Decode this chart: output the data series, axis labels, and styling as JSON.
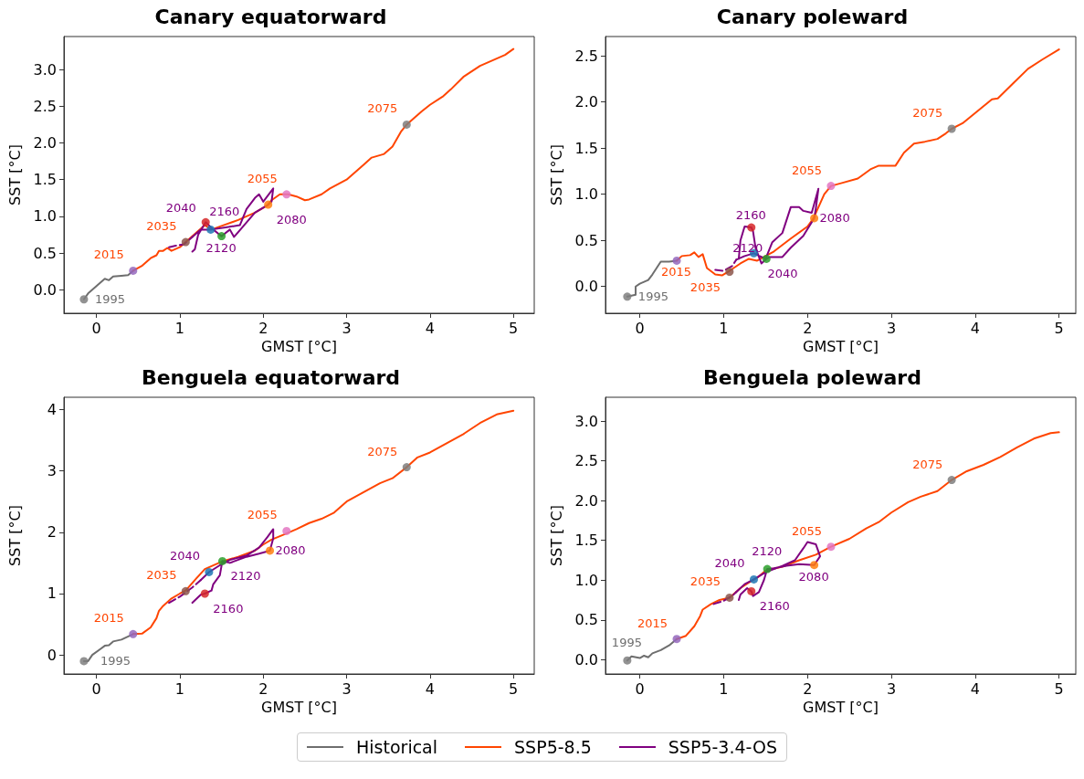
{
  "chart_data": [
    {
      "type": "line",
      "title": "Canary equatorward",
      "xlabel": "GMST [°C]",
      "ylabel": "SST [°C]",
      "xlim": [
        -0.39,
        5.25
      ],
      "xticks": [
        0,
        1,
        2,
        3,
        4,
        5
      ],
      "ylim": [
        -0.32,
        3.45
      ],
      "yticks": [
        {
          "value": 0,
          "label": "0.0"
        },
        0.5,
        {
          "value": 1,
          "label": "1.0"
        },
        1.5,
        {
          "value": 2,
          "label": "2.0"
        },
        2.5,
        {
          "value": 3,
          "label": "3.0"
        }
      ],
      "legend": "bottom",
      "grid": false,
      "series": [
        {
          "name": "Historical",
          "color": "#6e6e6e",
          "x": [
            -0.15,
            -0.1,
            0.0,
            0.1,
            0.15,
            0.2,
            0.3,
            0.38,
            0.44
          ],
          "values": [
            -0.13,
            -0.05,
            0.05,
            0.15,
            0.13,
            0.18,
            0.19,
            0.2,
            0.26
          ]
        },
        {
          "name": "SSP5-8.5",
          "color": "#ff4500",
          "x": [
            0.44,
            0.55,
            0.65,
            0.72,
            0.75,
            0.8,
            0.85,
            0.9,
            1.0,
            1.07,
            1.2,
            1.3,
            1.38,
            1.5,
            1.7,
            1.9,
            2.05,
            2.1,
            2.2,
            2.3,
            2.4,
            2.5,
            2.55,
            2.7,
            2.8,
            3.0,
            3.1,
            3.2,
            3.3,
            3.45,
            3.55,
            3.65,
            3.72,
            3.8,
            3.9,
            4.0,
            4.15,
            4.25,
            4.4,
            4.6,
            4.8,
            4.9,
            5.0
          ],
          "values": [
            0.26,
            0.33,
            0.43,
            0.47,
            0.53,
            0.53,
            0.57,
            0.53,
            0.58,
            0.65,
            0.78,
            0.88,
            0.82,
            0.87,
            0.95,
            1.05,
            1.15,
            1.22,
            1.3,
            1.3,
            1.27,
            1.22,
            1.23,
            1.3,
            1.38,
            1.5,
            1.6,
            1.7,
            1.8,
            1.85,
            1.95,
            2.15,
            2.25,
            2.33,
            2.43,
            2.52,
            2.63,
            2.73,
            2.9,
            3.05,
            3.15,
            3.2,
            3.28
          ]
        },
        {
          "name": "SSP5-3.4-OS",
          "color": "#800080",
          "x": [
            1.15,
            1.25,
            1.37,
            1.55,
            1.72,
            1.8,
            1.9,
            1.95,
            2.0,
            2.12,
            2.1,
            2.06,
            1.9,
            1.75,
            1.65,
            1.6,
            1.5,
            1.4,
            1.31,
            1.22,
            1.18,
            1.15
          ],
          "values": [
            0.72,
            0.82,
            0.82,
            0.85,
            0.88,
            1.1,
            1.25,
            1.3,
            1.2,
            1.38,
            1.2,
            1.16,
            1.05,
            0.85,
            0.72,
            0.82,
            0.73,
            0.82,
            0.92,
            0.75,
            0.55,
            0.52
          ]
        },
        {
          "color": "#800080",
          "line_style": "dashed",
          "x": [
            0.87,
            0.95,
            1.05,
            1.15
          ],
          "values": [
            0.58,
            0.6,
            0.62,
            0.72
          ]
        },
        {
          "type": "scatter",
          "x": [
            -0.15
          ],
          "values": [
            -0.13
          ],
          "colors": [
            "#7f7f7f"
          ]
        },
        {
          "type": "scatter",
          "x": [
            0.44,
            1.07,
            2.28,
            3.72
          ],
          "values": [
            0.26,
            0.65,
            1.3,
            2.25
          ],
          "colors": [
            "#9467bd",
            "#8c564b",
            "#e377c2",
            "#7f7f7f"
          ]
        },
        {
          "type": "scatter",
          "x": [
            1.37,
            2.06,
            1.5,
            1.31
          ],
          "values": [
            0.82,
            1.16,
            0.73,
            0.92
          ],
          "colors": [
            "#1f77b4",
            "#ff7f0e",
            "#2ca02c",
            "#d62728"
          ]
        }
      ],
      "annotations": [
        {
          "text": "1995",
          "x": -0.15,
          "y": -0.13
        },
        {
          "text": "2015",
          "x": 0.44,
          "y": 0.26
        },
        {
          "text": "2035",
          "x": 1.07,
          "y": 0.65
        },
        {
          "text": "2055",
          "x": 2.28,
          "y": 1.3
        },
        {
          "text": "2075",
          "x": 3.72,
          "y": 2.25
        },
        {
          "text": "2040",
          "x": 1.37,
          "y": 0.82
        },
        {
          "text": "2080",
          "x": 2.06,
          "y": 1.16
        },
        {
          "text": "2120",
          "x": 1.5,
          "y": 0.73
        },
        {
          "text": "2160",
          "x": 1.31,
          "y": 0.92
        }
      ]
    },
    {
      "type": "line",
      "title": "Canary poleward",
      "xlabel": "GMST [°C]",
      "ylabel": "SST [°C]",
      "xlim": [
        -0.41,
        5.2
      ],
      "xticks": [
        0,
        1,
        2,
        3,
        4,
        5
      ],
      "ylim": [
        -0.29,
        2.71
      ],
      "yticks": [
        {
          "value": 0,
          "label": "0.0"
        },
        0.5,
        {
          "value": 1,
          "label": "1.0"
        },
        1.5,
        {
          "value": 2,
          "label": "2.0"
        },
        2.5
      ],
      "legend": "bottom",
      "grid": false,
      "series": [
        {
          "name": "Historical",
          "color": "#6e6e6e",
          "x": [
            -0.15,
            -0.05,
            -0.05,
            0.0,
            0.1,
            0.15,
            0.2,
            0.25,
            0.35,
            0.44
          ],
          "values": [
            -0.11,
            -0.09,
            0.0,
            0.03,
            0.07,
            0.13,
            0.2,
            0.27,
            0.27,
            0.28
          ]
        },
        {
          "name": "SSP5-8.5",
          "color": "#ff4500",
          "x": [
            0.44,
            0.5,
            0.6,
            0.65,
            0.7,
            0.75,
            0.8,
            0.9,
            0.98,
            1.07,
            1.2,
            1.3,
            1.4,
            1.5,
            1.6,
            1.8,
            2.0,
            2.07,
            2.15,
            2.2,
            2.28,
            2.4,
            2.6,
            2.75,
            2.85,
            3.05,
            3.15,
            3.27,
            3.4,
            3.55,
            3.65,
            3.72,
            3.85,
            4.0,
            4.2,
            4.27,
            4.45,
            4.63,
            4.8,
            5.0
          ],
          "values": [
            0.28,
            0.33,
            0.34,
            0.37,
            0.32,
            0.35,
            0.2,
            0.13,
            0.12,
            0.17,
            0.25,
            0.3,
            0.28,
            0.33,
            0.38,
            0.52,
            0.65,
            0.74,
            0.9,
            1.0,
            1.09,
            1.12,
            1.17,
            1.27,
            1.31,
            1.31,
            1.45,
            1.55,
            1.57,
            1.6,
            1.66,
            1.71,
            1.77,
            1.88,
            2.03,
            2.04,
            2.2,
            2.36,
            2.46,
            2.57
          ]
        },
        {
          "name": "SSP5-3.4-OS",
          "color": "#800080",
          "x": [
            1.15,
            1.25,
            1.36,
            1.5,
            1.58,
            1.7,
            1.8,
            1.9,
            1.95,
            2.05,
            2.13,
            2.1,
            2.08,
            1.95,
            1.8,
            1.7,
            1.55,
            1.51,
            1.45,
            1.38,
            1.35,
            1.33,
            1.25,
            1.2,
            1.18
          ],
          "values": [
            0.29,
            0.33,
            0.36,
            0.3,
            0.48,
            0.58,
            0.86,
            0.86,
            0.82,
            0.8,
            1.06,
            0.85,
            0.74,
            0.55,
            0.42,
            0.32,
            0.32,
            0.3,
            0.25,
            0.42,
            0.6,
            0.64,
            0.65,
            0.5,
            0.3
          ]
        },
        {
          "color": "#800080",
          "line_style": "dashed",
          "x": [
            0.9,
            1.0,
            1.1,
            1.15
          ],
          "values": [
            0.18,
            0.17,
            0.22,
            0.29
          ]
        },
        {
          "type": "scatter",
          "x": [
            -0.15
          ],
          "values": [
            -0.11
          ],
          "colors": [
            "#7f7f7f"
          ]
        },
        {
          "type": "scatter",
          "x": [
            0.44,
            1.07,
            2.28,
            3.72
          ],
          "values": [
            0.28,
            0.16,
            1.09,
            1.71
          ],
          "colors": [
            "#9467bd",
            "#8c564b",
            "#e377c2",
            "#7f7f7f"
          ]
        },
        {
          "type": "scatter",
          "x": [
            1.36,
            2.08,
            1.51,
            1.33
          ],
          "values": [
            0.36,
            0.74,
            0.3,
            0.64
          ],
          "colors": [
            "#1f77b4",
            "#ff7f0e",
            "#2ca02c",
            "#d62728"
          ]
        }
      ],
      "annotations": [
        {
          "text": "1995",
          "x": -0.15,
          "y": -0.11
        },
        {
          "text": "2015",
          "x": 0.44,
          "y": 0.28
        },
        {
          "text": "2035",
          "x": 1.07,
          "y": 0.16
        },
        {
          "text": "2055",
          "x": 2.28,
          "y": 1.09
        },
        {
          "text": "2075",
          "x": 3.72,
          "y": 1.71
        },
        {
          "text": "2040",
          "x": 1.36,
          "y": 0.36
        },
        {
          "text": "2080",
          "x": 2.08,
          "y": 0.74
        },
        {
          "text": "2120",
          "x": 1.51,
          "y": 0.3
        },
        {
          "text": "2160",
          "x": 1.33,
          "y": 0.64
        }
      ]
    },
    {
      "type": "line",
      "title": "Benguela equatorward",
      "xlabel": "GMST [°C]",
      "ylabel": "SST [°C]",
      "xlim": [
        -0.39,
        5.25
      ],
      "xticks": [
        0,
        1,
        2,
        3,
        4,
        5
      ],
      "ylim": [
        -0.31,
        4.2
      ],
      "yticks": [
        0,
        1,
        2,
        3,
        4
      ],
      "legend": "bottom",
      "grid": false,
      "series": [
        {
          "name": "Historical",
          "color": "#6e6e6e",
          "x": [
            -0.15,
            -0.1,
            -0.05,
            0.05,
            0.1,
            0.15,
            0.2,
            0.3,
            0.44
          ],
          "values": [
            -0.1,
            -0.1,
            0.0,
            0.1,
            0.15,
            0.16,
            0.22,
            0.25,
            0.34
          ]
        },
        {
          "name": "SSP5-8.5",
          "color": "#ff4500",
          "x": [
            0.44,
            0.55,
            0.65,
            0.72,
            0.75,
            0.8,
            0.9,
            1.0,
            1.07,
            1.2,
            1.3,
            1.5,
            1.7,
            1.9,
            2.0,
            2.1,
            2.28,
            2.4,
            2.55,
            2.7,
            2.85,
            3.0,
            3.2,
            3.4,
            3.55,
            3.72,
            3.85,
            4.0,
            4.2,
            4.4,
            4.6,
            4.8,
            5.0
          ],
          "values": [
            0.34,
            0.35,
            0.45,
            0.6,
            0.72,
            0.8,
            0.92,
            1.0,
            1.05,
            1.25,
            1.4,
            1.52,
            1.6,
            1.7,
            1.8,
            1.88,
            1.98,
            2.05,
            2.15,
            2.22,
            2.32,
            2.5,
            2.65,
            2.8,
            2.88,
            3.06,
            3.22,
            3.3,
            3.45,
            3.6,
            3.78,
            3.92,
            3.98
          ]
        },
        {
          "name": "SSP5-3.4-OS",
          "color": "#800080",
          "x": [
            1.25,
            1.35,
            1.5,
            1.6,
            1.8,
            1.95,
            2.05,
            2.12,
            2.12,
            2.08,
            1.95,
            1.8,
            1.6,
            1.51,
            1.48,
            1.4,
            1.38,
            1.3,
            1.25,
            1.15
          ],
          "values": [
            1.22,
            1.35,
            1.48,
            1.55,
            1.62,
            1.75,
            1.92,
            2.05,
            1.9,
            1.7,
            1.65,
            1.6,
            1.5,
            1.53,
            1.3,
            1.15,
            1.05,
            1.0,
            0.98,
            0.85
          ]
        },
        {
          "color": "#800080",
          "line_style": "dashed",
          "x": [
            0.87,
            1.0,
            1.15,
            1.25
          ],
          "values": [
            0.85,
            0.95,
            1.1,
            1.22
          ]
        },
        {
          "type": "scatter",
          "x": [
            -0.15
          ],
          "values": [
            -0.1
          ],
          "colors": [
            "#7f7f7f"
          ]
        },
        {
          "type": "scatter",
          "x": [
            0.44,
            1.07,
            2.28,
            3.72
          ],
          "values": [
            0.34,
            1.04,
            2.02,
            3.06
          ],
          "colors": [
            "#9467bd",
            "#8c564b",
            "#e377c2",
            "#7f7f7f"
          ]
        },
        {
          "type": "scatter",
          "x": [
            1.35,
            2.08,
            1.51,
            1.3
          ],
          "values": [
            1.35,
            1.7,
            1.53,
            1.0
          ],
          "colors": [
            "#1f77b4",
            "#ff7f0e",
            "#2ca02c",
            "#d62728"
          ]
        }
      ],
      "annotations": [
        {
          "text": "1995",
          "x": -0.15,
          "y": -0.1
        },
        {
          "text": "2015",
          "x": 0.44,
          "y": 0.34
        },
        {
          "text": "2035",
          "x": 1.07,
          "y": 1.04
        },
        {
          "text": "2055",
          "x": 2.28,
          "y": 2.02
        },
        {
          "text": "2075",
          "x": 3.72,
          "y": 3.06
        },
        {
          "text": "2040",
          "x": 1.35,
          "y": 1.35
        },
        {
          "text": "2080",
          "x": 2.08,
          "y": 1.7
        },
        {
          "text": "2120",
          "x": 1.51,
          "y": 1.53
        },
        {
          "text": "2160",
          "x": 1.3,
          "y": 1.0
        }
      ]
    },
    {
      "type": "line",
      "title": "Benguela poleward",
      "xlabel": "GMST [°C]",
      "ylabel": "SST [°C]",
      "xlim": [
        -0.41,
        5.2
      ],
      "xticks": [
        0,
        1,
        2,
        3,
        4,
        5
      ],
      "ylim": [
        -0.18,
        3.3
      ],
      "yticks": [
        {
          "value": 0,
          "label": "0.0"
        },
        0.5,
        {
          "value": 1,
          "label": "1.0"
        },
        1.5,
        {
          "value": 2,
          "label": "2.0"
        },
        2.5,
        {
          "value": 3,
          "label": "3.0"
        }
      ],
      "legend": "bottom",
      "grid": false,
      "series": [
        {
          "name": "Historical",
          "color": "#6e6e6e",
          "x": [
            -0.15,
            -0.1,
            0.0,
            0.05,
            0.1,
            0.15,
            0.25,
            0.35,
            0.44
          ],
          "values": [
            -0.01,
            0.04,
            0.02,
            0.05,
            0.03,
            0.08,
            0.12,
            0.18,
            0.26
          ]
        },
        {
          "name": "SSP5-8.5",
          "color": "#ff4500",
          "x": [
            0.44,
            0.55,
            0.65,
            0.72,
            0.75,
            0.85,
            0.95,
            1.07,
            1.2,
            1.3,
            1.4,
            1.5,
            1.7,
            1.9,
            2.1,
            2.28,
            2.5,
            2.7,
            2.85,
            3.0,
            3.2,
            3.35,
            3.55,
            3.72,
            3.9,
            4.1,
            4.3,
            4.5,
            4.7,
            4.9,
            5.0
          ],
          "values": [
            0.26,
            0.3,
            0.42,
            0.55,
            0.63,
            0.7,
            0.75,
            0.78,
            0.9,
            0.97,
            1.03,
            1.12,
            1.17,
            1.25,
            1.32,
            1.42,
            1.52,
            1.65,
            1.73,
            1.85,
            1.98,
            2.05,
            2.12,
            2.26,
            2.37,
            2.45,
            2.55,
            2.67,
            2.78,
            2.85,
            2.86
          ]
        },
        {
          "name": "SSP5-3.4-OS",
          "color": "#800080",
          "x": [
            1.15,
            1.25,
            1.36,
            1.5,
            1.7,
            1.85,
            1.95,
            2.0,
            2.1,
            2.15,
            2.08,
            1.9,
            1.75,
            1.6,
            1.52,
            1.48,
            1.42,
            1.35,
            1.33,
            1.28,
            1.2,
            1.18
          ],
          "values": [
            0.85,
            0.95,
            1.01,
            1.1,
            1.18,
            1.25,
            1.4,
            1.48,
            1.45,
            1.3,
            1.19,
            1.2,
            1.18,
            1.15,
            1.14,
            1.0,
            0.85,
            0.8,
            0.86,
            0.9,
            0.82,
            0.75
          ]
        },
        {
          "color": "#800080",
          "line_style": "dashed",
          "x": [
            0.88,
            1.0,
            1.1,
            1.15
          ],
          "values": [
            0.7,
            0.74,
            0.8,
            0.85
          ]
        },
        {
          "type": "scatter",
          "x": [
            -0.15
          ],
          "values": [
            -0.01
          ],
          "colors": [
            "#7f7f7f"
          ]
        },
        {
          "type": "scatter",
          "x": [
            0.44,
            1.07,
            2.28,
            3.72
          ],
          "values": [
            0.26,
            0.78,
            1.42,
            2.26
          ],
          "colors": [
            "#9467bd",
            "#8c564b",
            "#e377c2",
            "#7f7f7f"
          ]
        },
        {
          "type": "scatter",
          "x": [
            1.36,
            2.08,
            1.52,
            1.33
          ],
          "values": [
            1.01,
            1.19,
            1.14,
            0.86
          ],
          "colors": [
            "#1f77b4",
            "#ff7f0e",
            "#2ca02c",
            "#d62728"
          ]
        }
      ],
      "annotations": [
        {
          "text": "1995",
          "x": -0.15,
          "y": -0.01
        },
        {
          "text": "2015",
          "x": 0.44,
          "y": 0.26
        },
        {
          "text": "2035",
          "x": 1.07,
          "y": 0.78
        },
        {
          "text": "2055",
          "x": 2.28,
          "y": 1.42
        },
        {
          "text": "2075",
          "x": 3.72,
          "y": 2.26
        },
        {
          "text": "2040",
          "x": 1.36,
          "y": 1.01
        },
        {
          "text": "2080",
          "x": 2.08,
          "y": 1.19
        },
        {
          "text": "2120",
          "x": 1.52,
          "y": 1.14
        },
        {
          "text": "2160",
          "x": 1.33,
          "y": 0.86
        }
      ]
    }
  ]
}
